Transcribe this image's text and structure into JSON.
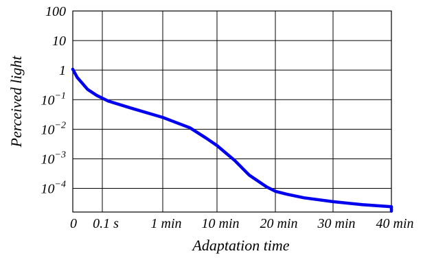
{
  "chart_data": {
    "type": "line",
    "title": "",
    "xlabel": "Adaptation time",
    "ylabel": "Perceived light",
    "x_categories": [
      "0",
      "0.1 s",
      "1 min",
      "10 min",
      "20 min",
      "30 min",
      "40 min"
    ],
    "y_scale": "log",
    "y_ticks": [
      {
        "label": "100",
        "exp": ""
      },
      {
        "label": "10",
        "exp": ""
      },
      {
        "label": "1",
        "exp": ""
      },
      {
        "label": "10",
        "exp": "−1"
      },
      {
        "label": "10",
        "exp": "−2"
      },
      {
        "label": "10",
        "exp": "−3"
      },
      {
        "label": "10",
        "exp": "−4"
      }
    ],
    "y_tick_values": [
      100,
      10,
      1,
      0.1,
      0.01,
      0.001,
      0.0001
    ],
    "ylim_log10": [
      -4.8,
      2
    ],
    "grid": true,
    "series": [
      {
        "color": "#0000ee",
        "points": [
          {
            "x": "0",
            "log10_y": 0.03
          },
          {
            "x": "0.1 s",
            "log10_y": -0.65
          },
          {
            "x": "1 min",
            "log10_y": -1.5
          },
          {
            "x": "10 min",
            "log10_y": -2.55
          },
          {
            "x": "20 min",
            "log10_y": -3.97
          },
          {
            "x": "30 min",
            "log10_y": -4.4
          },
          {
            "x": "40 min",
            "log10_y": -4.6
          }
        ],
        "curve_log10": [
          [
            0,
            0.03
          ],
          [
            0.15,
            -0.25
          ],
          [
            0.5,
            -0.65
          ],
          [
            0.8,
            -0.85
          ],
          [
            1.1,
            -1.05
          ],
          [
            1.5,
            -1.3
          ],
          [
            2,
            -1.6
          ],
          [
            2.5,
            -1.95
          ],
          [
            2.8,
            -2.3
          ],
          [
            3,
            -2.55
          ],
          [
            3.3,
            -3.05
          ],
          [
            3.55,
            -3.55
          ],
          [
            3.85,
            -3.95
          ],
          [
            4,
            -4.1
          ],
          [
            4.2,
            -4.2
          ],
          [
            4.5,
            -4.32
          ],
          [
            5,
            -4.45
          ],
          [
            5.5,
            -4.55
          ],
          [
            6,
            -4.62
          ],
          [
            6.5,
            -4.7
          ],
          [
            6.85,
            -4.77
          ]
        ]
      }
    ]
  }
}
